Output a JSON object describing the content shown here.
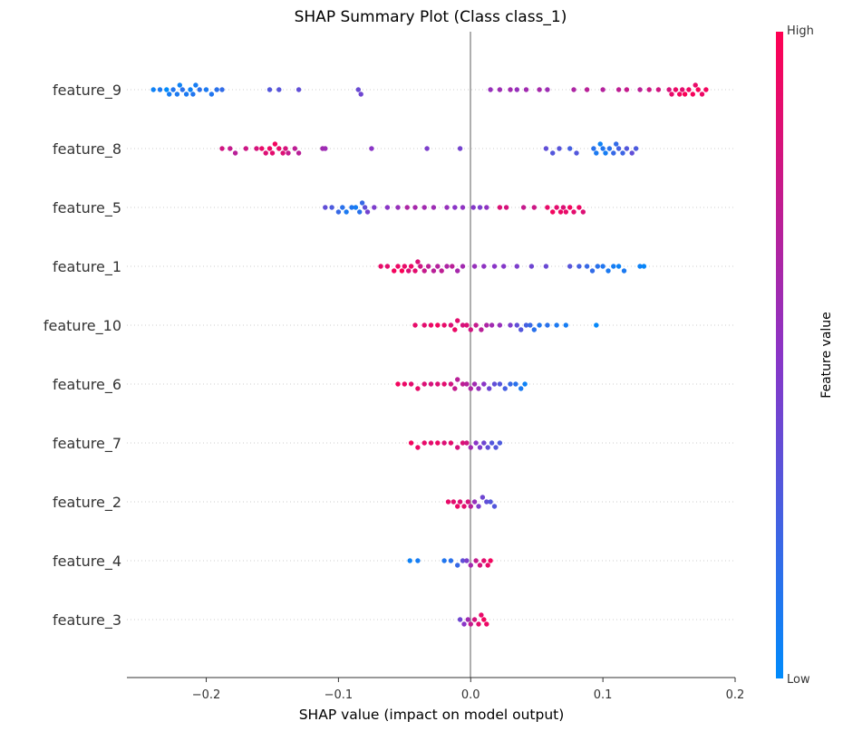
{
  "chart_data": {
    "type": "scatter",
    "title": "SHAP Summary Plot (Class class_1)",
    "xlabel": "SHAP value (impact on model output)",
    "xlim": [
      -0.26,
      0.2
    ],
    "xticks": [
      -0.2,
      -0.1,
      0.0,
      0.1,
      0.2
    ],
    "xtick_labels": [
      "−0.2",
      "−0.1",
      "0.0",
      "0.1",
      "0.2"
    ],
    "features": [
      "feature_9",
      "feature_8",
      "feature_5",
      "feature_1",
      "feature_10",
      "feature_6",
      "feature_7",
      "feature_2",
      "feature_4",
      "feature_3"
    ],
    "colorbar": {
      "label": "Feature value",
      "high_label": "High",
      "low_label": "Low",
      "low_color": "#008bfb",
      "mid_color": "#8a35c7",
      "high_color": "#ff0052"
    },
    "series": [
      {
        "feature": "feature_9",
        "points": [
          [
            -0.24,
            0.05
          ],
          [
            -0.235,
            0.1
          ],
          [
            -0.23,
            0.0
          ],
          [
            -0.228,
            0.08
          ],
          [
            -0.225,
            0.12
          ],
          [
            -0.222,
            0.1
          ],
          [
            -0.22,
            0.05
          ],
          [
            -0.218,
            0.15
          ],
          [
            -0.215,
            0.1
          ],
          [
            -0.212,
            0.05
          ],
          [
            -0.21,
            0.12
          ],
          [
            -0.208,
            0.08
          ],
          [
            -0.205,
            0.15
          ],
          [
            -0.2,
            0.1
          ],
          [
            -0.196,
            0.12
          ],
          [
            -0.192,
            0.15
          ],
          [
            -0.188,
            0.18
          ],
          [
            -0.152,
            0.3
          ],
          [
            -0.145,
            0.32
          ],
          [
            -0.13,
            0.35
          ],
          [
            -0.085,
            0.38
          ],
          [
            -0.083,
            0.4
          ],
          [
            0.015,
            0.55
          ],
          [
            0.022,
            0.58
          ],
          [
            0.03,
            0.6
          ],
          [
            0.035,
            0.55
          ],
          [
            0.042,
            0.6
          ],
          [
            0.052,
            0.62
          ],
          [
            0.058,
            0.58
          ],
          [
            0.078,
            0.65
          ],
          [
            0.088,
            0.7
          ],
          [
            0.1,
            0.68
          ],
          [
            0.112,
            0.72
          ],
          [
            0.118,
            0.75
          ],
          [
            0.128,
            0.7
          ],
          [
            0.135,
            0.78
          ],
          [
            0.142,
            0.8
          ],
          [
            0.15,
            0.82
          ],
          [
            0.152,
            0.9
          ],
          [
            0.155,
            0.92
          ],
          [
            0.158,
            0.95
          ],
          [
            0.16,
            0.88
          ],
          [
            0.162,
            0.98
          ],
          [
            0.165,
            0.93
          ],
          [
            0.168,
            0.96
          ],
          [
            0.17,
            0.9
          ],
          [
            0.172,
            0.97
          ],
          [
            0.175,
            0.92
          ],
          [
            0.178,
            0.95
          ]
        ]
      },
      {
        "feature": "feature_8",
        "points": [
          [
            -0.188,
            0.8
          ],
          [
            -0.182,
            0.75
          ],
          [
            -0.178,
            0.7
          ],
          [
            -0.17,
            0.78
          ],
          [
            -0.162,
            0.82
          ],
          [
            -0.158,
            0.9
          ],
          [
            -0.155,
            0.85
          ],
          [
            -0.152,
            0.92
          ],
          [
            -0.15,
            0.88
          ],
          [
            -0.148,
            0.95
          ],
          [
            -0.145,
            0.9
          ],
          [
            -0.142,
            0.85
          ],
          [
            -0.14,
            0.82
          ],
          [
            -0.138,
            0.75
          ],
          [
            -0.133,
            0.72
          ],
          [
            -0.13,
            0.7
          ],
          [
            -0.112,
            0.6
          ],
          [
            -0.11,
            0.58
          ],
          [
            -0.075,
            0.5
          ],
          [
            -0.033,
            0.45
          ],
          [
            -0.008,
            0.42
          ],
          [
            0.057,
            0.35
          ],
          [
            0.062,
            0.3
          ],
          [
            0.067,
            0.32
          ],
          [
            0.075,
            0.25
          ],
          [
            0.08,
            0.3
          ],
          [
            0.093,
            0.15
          ],
          [
            0.095,
            0.1
          ],
          [
            0.098,
            0.05
          ],
          [
            0.1,
            0.12
          ],
          [
            0.102,
            0.08
          ],
          [
            0.105,
            0.15
          ],
          [
            0.108,
            0.2
          ],
          [
            0.11,
            0.18
          ],
          [
            0.112,
            0.25
          ],
          [
            0.115,
            0.22
          ],
          [
            0.118,
            0.3
          ],
          [
            0.122,
            0.35
          ],
          [
            0.125,
            0.28
          ]
        ]
      },
      {
        "feature": "feature_5",
        "points": [
          [
            -0.11,
            0.35
          ],
          [
            -0.105,
            0.28
          ],
          [
            -0.1,
            0.2
          ],
          [
            -0.097,
            0.15
          ],
          [
            -0.094,
            0.1
          ],
          [
            -0.09,
            0.12
          ],
          [
            -0.087,
            0.08
          ],
          [
            -0.084,
            0.15
          ],
          [
            -0.082,
            0.2
          ],
          [
            -0.08,
            0.35
          ],
          [
            -0.078,
            0.42
          ],
          [
            -0.073,
            0.45
          ],
          [
            -0.063,
            0.5
          ],
          [
            -0.055,
            0.55
          ],
          [
            -0.048,
            0.65
          ],
          [
            -0.042,
            0.62
          ],
          [
            -0.035,
            0.6
          ],
          [
            -0.028,
            0.58
          ],
          [
            -0.018,
            0.55
          ],
          [
            -0.012,
            0.5
          ],
          [
            -0.006,
            0.52
          ],
          [
            0.002,
            0.48
          ],
          [
            0.007,
            0.45
          ],
          [
            0.012,
            0.52
          ],
          [
            0.022,
            0.85
          ],
          [
            0.027,
            0.82
          ],
          [
            0.04,
            0.75
          ],
          [
            0.048,
            0.78
          ],
          [
            0.058,
            0.9
          ],
          [
            0.062,
            0.95
          ],
          [
            0.065,
            0.88
          ],
          [
            0.068,
            0.92
          ],
          [
            0.07,
            0.85
          ],
          [
            0.072,
            0.9
          ],
          [
            0.075,
            0.95
          ],
          [
            0.078,
            0.88
          ],
          [
            0.082,
            0.92
          ],
          [
            0.085,
            0.85
          ]
        ]
      },
      {
        "feature": "feature_1",
        "points": [
          [
            -0.068,
            0.9
          ],
          [
            -0.063,
            0.88
          ],
          [
            -0.058,
            0.95
          ],
          [
            -0.055,
            0.92
          ],
          [
            -0.052,
            0.98
          ],
          [
            -0.05,
            0.9
          ],
          [
            -0.047,
            0.85
          ],
          [
            -0.045,
            0.92
          ],
          [
            -0.042,
            0.88
          ],
          [
            -0.04,
            0.85
          ],
          [
            -0.038,
            0.78
          ],
          [
            -0.035,
            0.75
          ],
          [
            -0.032,
            0.72
          ],
          [
            -0.028,
            0.7
          ],
          [
            -0.025,
            0.68
          ],
          [
            -0.022,
            0.72
          ],
          [
            -0.018,
            0.65
          ],
          [
            -0.014,
            0.7
          ],
          [
            -0.01,
            0.62
          ],
          [
            -0.006,
            0.6
          ],
          [
            0.003,
            0.55
          ],
          [
            0.01,
            0.52
          ],
          [
            0.018,
            0.5
          ],
          [
            0.025,
            0.48
          ],
          [
            0.035,
            0.45
          ],
          [
            0.046,
            0.4
          ],
          [
            0.057,
            0.38
          ],
          [
            0.075,
            0.32
          ],
          [
            0.082,
            0.25
          ],
          [
            0.088,
            0.2
          ],
          [
            0.092,
            0.18
          ],
          [
            0.096,
            0.15
          ],
          [
            0.1,
            0.12
          ],
          [
            0.104,
            0.1
          ],
          [
            0.108,
            0.08
          ],
          [
            0.112,
            0.05
          ],
          [
            0.116,
            0.1
          ],
          [
            0.128,
            0.05
          ],
          [
            0.131,
            0.03
          ]
        ]
      },
      {
        "feature": "feature_10",
        "points": [
          [
            -0.042,
            0.9
          ],
          [
            -0.035,
            0.88
          ],
          [
            -0.03,
            0.92
          ],
          [
            -0.025,
            0.95
          ],
          [
            -0.02,
            0.9
          ],
          [
            -0.015,
            0.85
          ],
          [
            -0.012,
            0.92
          ],
          [
            -0.01,
            0.88
          ],
          [
            -0.006,
            0.82
          ],
          [
            -0.003,
            0.85
          ],
          [
            0.0,
            0.8
          ],
          [
            0.004,
            0.75
          ],
          [
            0.008,
            0.7
          ],
          [
            0.012,
            0.65
          ],
          [
            0.016,
            0.6
          ],
          [
            0.022,
            0.55
          ],
          [
            0.03,
            0.45
          ],
          [
            0.035,
            0.35
          ],
          [
            0.038,
            0.3
          ],
          [
            0.042,
            0.25
          ],
          [
            0.045,
            0.2
          ],
          [
            0.048,
            0.15
          ],
          [
            0.052,
            0.12
          ],
          [
            0.058,
            0.15
          ],
          [
            0.065,
            0.1
          ],
          [
            0.072,
            0.08
          ],
          [
            0.095,
            0.02
          ]
        ]
      },
      {
        "feature": "feature_6",
        "points": [
          [
            -0.055,
            0.95
          ],
          [
            -0.05,
            0.92
          ],
          [
            -0.045,
            0.88
          ],
          [
            -0.04,
            0.9
          ],
          [
            -0.035,
            0.85
          ],
          [
            -0.03,
            0.82
          ],
          [
            -0.025,
            0.85
          ],
          [
            -0.02,
            0.88
          ],
          [
            -0.015,
            0.8
          ],
          [
            -0.012,
            0.75
          ],
          [
            -0.01,
            0.7
          ],
          [
            -0.006,
            0.72
          ],
          [
            -0.003,
            0.68
          ],
          [
            0.0,
            0.65
          ],
          [
            0.003,
            0.6
          ],
          [
            0.006,
            0.55
          ],
          [
            0.01,
            0.5
          ],
          [
            0.014,
            0.4
          ],
          [
            0.018,
            0.35
          ],
          [
            0.022,
            0.3
          ],
          [
            0.026,
            0.25
          ],
          [
            0.03,
            0.2
          ],
          [
            0.034,
            0.15
          ],
          [
            0.038,
            0.1
          ],
          [
            0.041,
            0.05
          ]
        ]
      },
      {
        "feature": "feature_7",
        "points": [
          [
            -0.045,
            0.95
          ],
          [
            -0.04,
            0.92
          ],
          [
            -0.035,
            0.9
          ],
          [
            -0.03,
            0.88
          ],
          [
            -0.025,
            0.92
          ],
          [
            -0.02,
            0.85
          ],
          [
            -0.015,
            0.88
          ],
          [
            -0.01,
            0.82
          ],
          [
            -0.006,
            0.85
          ],
          [
            -0.003,
            0.8
          ],
          [
            0.0,
            0.6
          ],
          [
            0.004,
            0.5
          ],
          [
            0.007,
            0.45
          ],
          [
            0.01,
            0.4
          ],
          [
            0.013,
            0.35
          ],
          [
            0.016,
            0.3
          ],
          [
            0.019,
            0.3
          ],
          [
            0.022,
            0.28
          ]
        ]
      },
      {
        "feature": "feature_2",
        "points": [
          [
            -0.017,
            0.9
          ],
          [
            -0.013,
            0.88
          ],
          [
            -0.01,
            0.92
          ],
          [
            -0.008,
            0.85
          ],
          [
            -0.005,
            0.88
          ],
          [
            -0.002,
            0.82
          ],
          [
            0.0,
            0.7
          ],
          [
            0.003,
            0.55
          ],
          [
            0.006,
            0.45
          ],
          [
            0.009,
            0.4
          ],
          [
            0.012,
            0.35
          ],
          [
            0.015,
            0.3
          ],
          [
            0.018,
            0.3
          ]
        ]
      },
      {
        "feature": "feature_4",
        "points": [
          [
            -0.046,
            0.05
          ],
          [
            -0.04,
            0.08
          ],
          [
            -0.02,
            0.12
          ],
          [
            -0.015,
            0.15
          ],
          [
            -0.01,
            0.2
          ],
          [
            -0.006,
            0.35
          ],
          [
            -0.003,
            0.45
          ],
          [
            0.0,
            0.6
          ],
          [
            0.004,
            0.75
          ],
          [
            0.007,
            0.82
          ],
          [
            0.01,
            0.88
          ],
          [
            0.013,
            0.9
          ],
          [
            0.015,
            0.95
          ]
        ]
      },
      {
        "feature": "feature_3",
        "points": [
          [
            -0.008,
            0.4
          ],
          [
            -0.005,
            0.5
          ],
          [
            -0.002,
            0.6
          ],
          [
            0.0,
            0.75
          ],
          [
            0.003,
            0.82
          ],
          [
            0.006,
            0.88
          ],
          [
            0.008,
            0.9
          ],
          [
            0.01,
            0.95
          ],
          [
            0.012,
            0.92
          ]
        ]
      }
    ]
  }
}
